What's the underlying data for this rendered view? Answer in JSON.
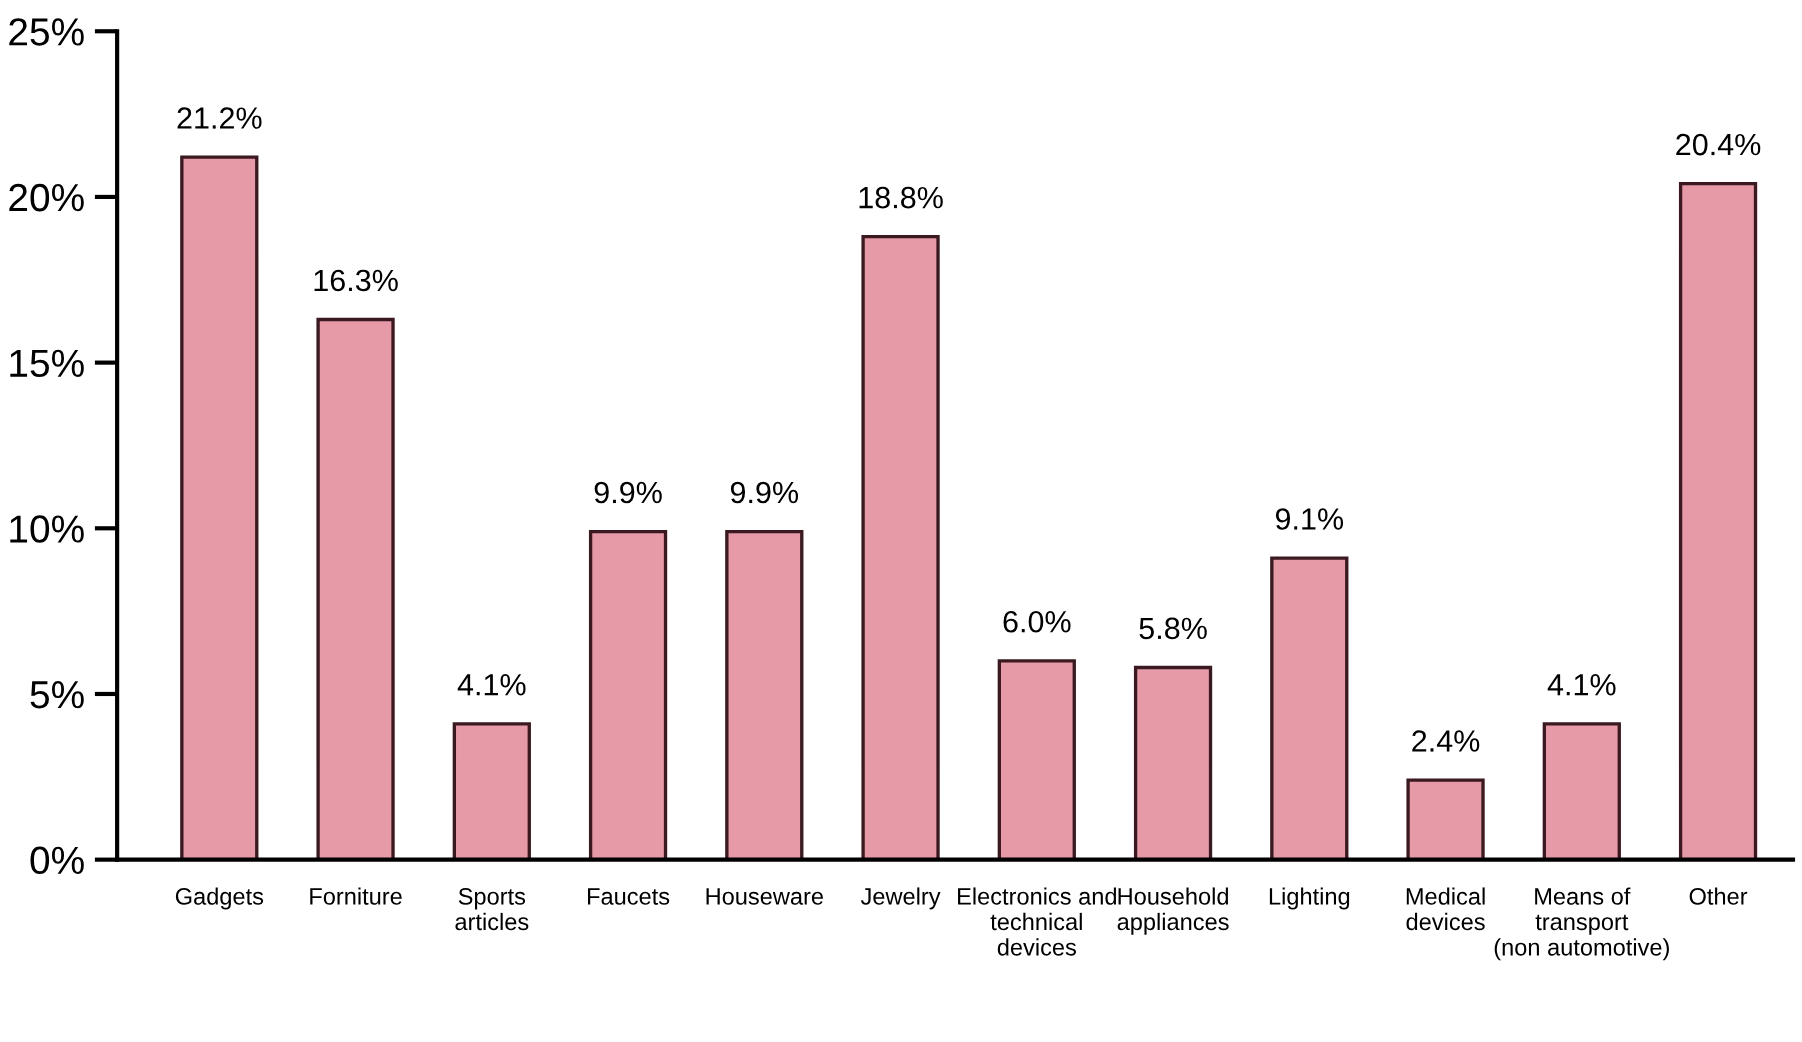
{
  "chart_data": {
    "type": "bar",
    "categories": [
      "Gadgets",
      "Forniture",
      "Sports\narticles",
      "Faucets",
      "Houseware",
      "Jewelry",
      "Electronics and\ntechnical\ndevices",
      "Household\nappliances",
      "Lighting",
      "Medical\ndevices",
      "Means of\ntransport\n(non automotive)",
      "Other"
    ],
    "values": [
      21.2,
      16.3,
      4.1,
      9.9,
      9.9,
      18.8,
      6.0,
      5.8,
      9.1,
      2.4,
      4.1,
      20.4
    ],
    "value_labels": [
      "21.2%",
      "16.3%",
      "4.1%",
      "9.9%",
      "9.9%",
      "18.8%",
      "6.0%",
      "5.8%",
      "9.1%",
      "2.4%",
      "4.1%",
      "20.4%"
    ],
    "color": "#e69aa8",
    "ylim": [
      0,
      25
    ],
    "yticks": [
      {
        "value": 0,
        "label": "0%"
      },
      {
        "value": 5,
        "label": "5%"
      },
      {
        "value": 10,
        "label": "10%"
      },
      {
        "value": 15,
        "label": "15%"
      },
      {
        "value": 20,
        "label": "20%"
      },
      {
        "value": 25,
        "label": "25%"
      }
    ],
    "grid": false,
    "legend": false
  }
}
